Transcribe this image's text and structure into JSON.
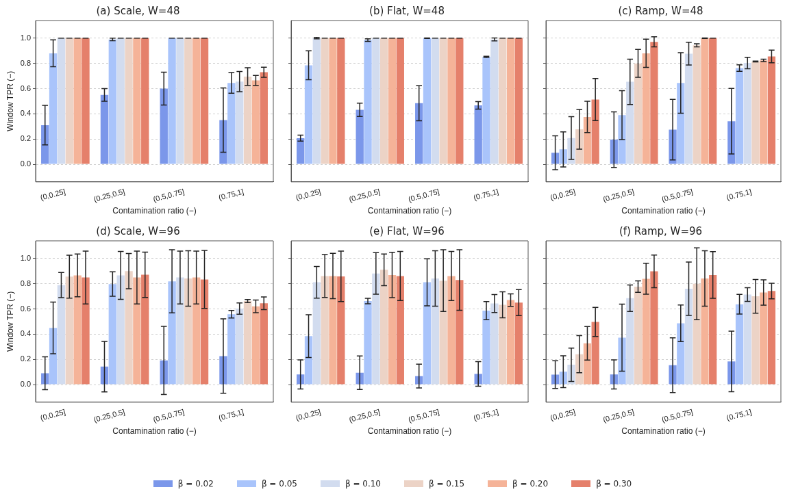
{
  "chart_data": [
    {
      "type": "bar",
      "title": "(a) Scale, W=48",
      "xlabel": "Contamination ratio (−)",
      "ylabel": "Window TPR (−)",
      "categories": [
        "(0,0.25]",
        "(0.25,0.5]",
        "(0.5,0.75]",
        "(0.75,1]"
      ],
      "ylim": [
        -0.14,
        1.14
      ],
      "yticks": [
        {
          "value": 0,
          "label": "0.0"
        },
        {
          "value": 0.2,
          "label": "0.2"
        },
        {
          "value": 0.4,
          "label": "0.4"
        },
        {
          "value": 0.6,
          "label": "0.6"
        },
        {
          "value": 0.8,
          "label": "0.8"
        },
        {
          "value": 1,
          "label": "1.0"
        }
      ],
      "grid": "y",
      "legend": "bottom",
      "series": [
        {
          "name": "β = 0.02",
          "color": "#7b97ea",
          "values": [
            0.31,
            0.55,
            0.6,
            0.35
          ],
          "errors": [
            0.157,
            0.05,
            0.13,
            0.255
          ]
        },
        {
          "name": "β = 0.05",
          "color": "#a9c4fb",
          "values": [
            0.88,
            0.99,
            1.0,
            0.645
          ],
          "errors": [
            0.107,
            0.01,
            0,
            0.082
          ]
        },
        {
          "name": "β = 0.10",
          "color": "#d2dcef",
          "values": [
            1.0,
            1.0,
            1.0,
            0.655
          ],
          "errors": [
            0,
            0,
            0,
            0.08
          ]
        },
        {
          "name": "β = 0.15",
          "color": "#ecd3c6",
          "values": [
            1.0,
            1.0,
            1.0,
            0.695
          ],
          "errors": [
            0,
            0,
            0,
            0.07
          ]
        },
        {
          "name": "β = 0.20",
          "color": "#f5b398",
          "values": [
            1.0,
            1.0,
            1.0,
            0.665
          ],
          "errors": [
            0,
            0,
            0,
            0.04
          ]
        },
        {
          "name": "β = 0.30",
          "color": "#e5806b",
          "values": [
            1.0,
            1.0,
            1.0,
            0.73
          ],
          "errors": [
            0,
            0,
            0,
            0.04
          ]
        }
      ]
    },
    {
      "type": "bar",
      "title": "(b) Flat, W=48",
      "xlabel": "Contamination ratio (−)",
      "categories": [
        "(0,0.25]",
        "(0.25,0.5]",
        "(0.5,0.75]",
        "(0.75,1]"
      ],
      "ylim": [
        -0.14,
        1.14
      ],
      "yticks": [
        {
          "value": 0,
          "label": null
        },
        {
          "value": 0.2,
          "label": null
        },
        {
          "value": 0.4,
          "label": null
        },
        {
          "value": 0.6,
          "label": null
        },
        {
          "value": 0.8,
          "label": null
        },
        {
          "value": 1,
          "label": null
        }
      ],
      "grid": "y",
      "tick_labels": "x",
      "series": [
        {
          "color": "#7b97ea",
          "values": [
            0.207,
            0.432,
            0.484,
            0.467
          ],
          "errors": [
            0.024,
            0.053,
            0.139,
            0.03
          ]
        },
        {
          "color": "#a9c4fb",
          "values": [
            0.785,
            0.985,
            1.0,
            0.852
          ],
          "errors": [
            0.115,
            0.01,
            0.002,
            0.005
          ]
        },
        {
          "color": "#d2dcef",
          "values": [
            1.0,
            1.0,
            1.0,
            0.99
          ],
          "errors": [
            0.005,
            0,
            0,
            0.012
          ]
        },
        {
          "color": "#ecd3c6",
          "values": [
            1.0,
            1.0,
            1.0,
            1.0
          ],
          "errors": [
            0,
            0,
            0,
            0
          ]
        },
        {
          "color": "#f5b398",
          "values": [
            1.0,
            1.0,
            1.0,
            1.0
          ],
          "errors": [
            0,
            0,
            0,
            0
          ]
        },
        {
          "color": "#e5806b",
          "values": [
            1.0,
            1.0,
            1.0,
            1.0
          ],
          "errors": [
            0,
            0,
            0,
            0
          ]
        }
      ]
    },
    {
      "type": "bar",
      "title": "(c) Ramp, W=48",
      "xlabel": "Contamination ratio (−)",
      "categories": [
        "(0,0.25]",
        "(0.25,0.5]",
        "(0.5,0.75]",
        "(0.75,1]"
      ],
      "ylim": [
        -0.14,
        1.14
      ],
      "yticks": [
        {
          "value": 0,
          "label": null
        },
        {
          "value": 0.2,
          "label": null
        },
        {
          "value": 0.4,
          "label": null
        },
        {
          "value": 0.6,
          "label": null
        },
        {
          "value": 0.8,
          "label": null
        },
        {
          "value": 1,
          "label": null
        }
      ],
      "grid": "y",
      "tick_labels": "x",
      "series": [
        {
          "color": "#7b97ea",
          "values": [
            0.091,
            0.195,
            0.274,
            0.341
          ],
          "errors": [
            0.134,
            0.22,
            0.24,
            0.26
          ]
        },
        {
          "color": "#a9c4fb",
          "values": [
            0.118,
            0.39,
            0.645,
            0.763
          ],
          "errors": [
            0.139,
            0.194,
            0.24,
            0.026
          ]
        },
        {
          "color": "#d2dcef",
          "values": [
            0.208,
            0.654,
            0.877,
            0.803
          ],
          "errors": [
            0.17,
            0.18,
            0.09,
            0.045
          ]
        },
        {
          "color": "#ecd3c6",
          "values": [
            0.277,
            0.8,
            0.943,
            0.815
          ],
          "errors": [
            0.158,
            0.11,
            0.012,
            0.003
          ]
        },
        {
          "color": "#f5b398",
          "values": [
            0.375,
            0.88,
            1.0,
            0.824
          ],
          "errors": [
            0.124,
            0.112,
            0.002,
            0.01
          ]
        },
        {
          "color": "#e5806b",
          "values": [
            0.513,
            0.971,
            1.0,
            0.855
          ],
          "errors": [
            0.167,
            0.04,
            0,
            0.05
          ]
        }
      ]
    },
    {
      "type": "bar",
      "title": "(d) Scale, W=96",
      "xlabel": "Contamination ratio (−)",
      "ylabel": "Window TPR (−)",
      "categories": [
        "(0,0.25]",
        "(0.25,0.5]",
        "(0.5,0.75]",
        "(0.75,1]"
      ],
      "ylim": [
        -0.14,
        1.14
      ],
      "yticks": [
        {
          "value": 0,
          "label": "0.0"
        },
        {
          "value": 0.2,
          "label": "0.2"
        },
        {
          "value": 0.4,
          "label": "0.4"
        },
        {
          "value": 0.6,
          "label": "0.6"
        },
        {
          "value": 0.8,
          "label": "0.8"
        },
        {
          "value": 1,
          "label": "1.0"
        }
      ],
      "grid": "y",
      "series": [
        {
          "color": "#7b97ea",
          "values": [
            0.09,
            0.142,
            0.191,
            0.226
          ],
          "errors": [
            0.13,
            0.2,
            0.27,
            0.295
          ]
        },
        {
          "color": "#a9c4fb",
          "values": [
            0.449,
            0.797,
            0.819,
            0.558
          ],
          "errors": [
            0.205,
            0.097,
            0.25,
            0.03
          ]
        },
        {
          "color": "#d2dcef",
          "values": [
            0.789,
            0.866,
            0.849,
            0.603
          ],
          "errors": [
            0.1,
            0.19,
            0.21,
            0.045
          ]
        },
        {
          "color": "#ecd3c6",
          "values": [
            0.856,
            0.9,
            0.841,
            0.662
          ],
          "errors": [
            0.17,
            0.14,
            0.22,
            0.012
          ]
        },
        {
          "color": "#f5b398",
          "values": [
            0.866,
            0.849,
            0.849,
            0.62
          ],
          "errors": [
            0.17,
            0.21,
            0.21,
            0.05
          ]
        },
        {
          "color": "#e5806b",
          "values": [
            0.849,
            0.871,
            0.834,
            0.645
          ],
          "errors": [
            0.21,
            0.18,
            0.23,
            0.05
          ]
        }
      ]
    },
    {
      "type": "bar",
      "title": "(e) Flat, W=96",
      "xlabel": "Contamination ratio (−)",
      "categories": [
        "(0,0.25]",
        "(0.25,0.5]",
        "(0.5,0.75]",
        "(0.75,1]"
      ],
      "ylim": [
        -0.14,
        1.14
      ],
      "yticks": [
        {
          "value": 0,
          "label": null
        },
        {
          "value": 0.2,
          "label": null
        },
        {
          "value": 0.4,
          "label": null
        },
        {
          "value": 0.6,
          "label": null
        },
        {
          "value": 0.8,
          "label": null
        },
        {
          "value": 1,
          "label": null
        }
      ],
      "grid": "y",
      "tick_labels": "x",
      "series": [
        {
          "color": "#7b97ea",
          "values": [
            0.08,
            0.094,
            0.067,
            0.084
          ],
          "errors": [
            0.115,
            0.133,
            0.094,
            0.098
          ]
        },
        {
          "color": "#a9c4fb",
          "values": [
            0.384,
            0.662,
            0.811,
            0.586
          ],
          "errors": [
            0.17,
            0.022,
            0.187,
            0.072
          ]
        },
        {
          "color": "#d2dcef",
          "values": [
            0.811,
            0.881,
            0.841,
            0.643
          ],
          "errors": [
            0.125,
            0.165,
            0.22,
            0.071
          ]
        },
        {
          "color": "#ecd3c6",
          "values": [
            0.861,
            0.91,
            0.824,
            0.632
          ],
          "errors": [
            0.17,
            0.126,
            0.245,
            0.103
          ]
        },
        {
          "color": "#f5b398",
          "values": [
            0.861,
            0.869,
            0.861,
            0.67
          ],
          "errors": [
            0.18,
            0.18,
            0.195,
            0.05
          ]
        },
        {
          "color": "#e5806b",
          "values": [
            0.858,
            0.861,
            0.829,
            0.65
          ],
          "errors": [
            0.2,
            0.195,
            0.24,
            0.103
          ]
        }
      ]
    },
    {
      "type": "bar",
      "title": "(f) Ramp, W=96",
      "xlabel": "Contamination ratio (−)",
      "categories": [
        "(0,0.25]",
        "(0.25,0.5]",
        "(0.5,0.75]",
        "(0.75,1]"
      ],
      "ylim": [
        -0.14,
        1.14
      ],
      "yticks": [
        {
          "value": 0,
          "label": null
        },
        {
          "value": 0.2,
          "label": null
        },
        {
          "value": 0.4,
          "label": null
        },
        {
          "value": 0.6,
          "label": null
        },
        {
          "value": 0.8,
          "label": null
        },
        {
          "value": 1,
          "label": null
        }
      ],
      "grid": "y",
      "tick_labels": "x",
      "series": [
        {
          "color": "#7b97ea",
          "values": [
            0.079,
            0.08,
            0.154,
            0.183
          ],
          "errors": [
            0.11,
            0.115,
            0.217,
            0.24
          ]
        },
        {
          "color": "#a9c4fb",
          "values": [
            0.102,
            0.372,
            0.486,
            0.637
          ],
          "errors": [
            0.126,
            0.266,
            0.145,
            0.078
          ]
        },
        {
          "color": "#d2dcef",
          "values": [
            0.157,
            0.685,
            0.76,
            0.714
          ],
          "errors": [
            0.132,
            0.105,
            0.212,
            0.054
          ]
        },
        {
          "color": "#ecd3c6",
          "values": [
            0.241,
            0.777,
            0.799,
            0.7
          ],
          "errors": [
            0.147,
            0.046,
            0.285,
            0.134
          ]
        },
        {
          "color": "#f5b398",
          "values": [
            0.327,
            0.839,
            0.841,
            0.73
          ],
          "errors": [
            0.133,
            0.123,
            0.22,
            0.1
          ]
        },
        {
          "color": "#e5806b",
          "values": [
            0.497,
            0.898,
            0.869,
            0.742
          ],
          "errors": [
            0.115,
            0.13,
            0.185,
            0.062
          ]
        }
      ]
    }
  ]
}
